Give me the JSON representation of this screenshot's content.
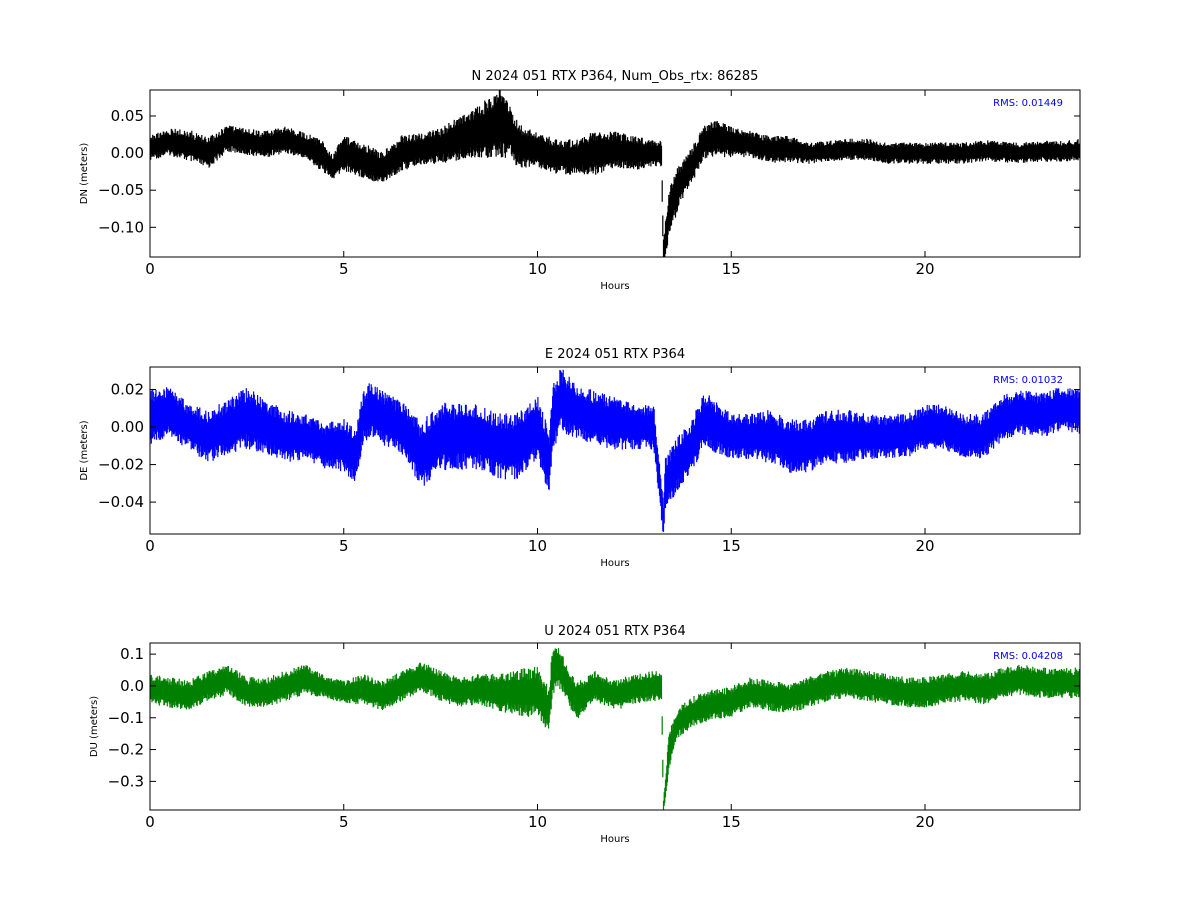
{
  "colors": {
    "background": "#ffffff",
    "axes": "#000000",
    "rms_text": "#0000ff"
  },
  "chart_data": [
    {
      "type": "scatter",
      "title": "N 2024 051 RTX  P364, Num_Obs_rtx: 86285",
      "xlabel": "Hours",
      "ylabel": "DN (meters)",
      "xlim": [
        0,
        24
      ],
      "ylim": [
        -0.14,
        0.085
      ],
      "xticks": [
        0,
        5,
        10,
        15,
        20
      ],
      "yticks": [
        0.05,
        0.0,
        -0.05,
        -0.1
      ],
      "ytick_labels": [
        "0.05",
        "0.00",
        "−0.05",
        "−0.10"
      ],
      "rms_label": "RMS:  0.01449",
      "color": "#000000",
      "grid": false,
      "series": [
        {
          "x": [
            0.0,
            0.5,
            1.0,
            1.5,
            2.0,
            2.5,
            3.0,
            3.5,
            4.0,
            4.5,
            4.7,
            5.0,
            5.5,
            6.0,
            6.5,
            7.0,
            7.5,
            8.0,
            8.5,
            9.0,
            9.3,
            9.5,
            10.0,
            10.5,
            11.0,
            11.5,
            12.0,
            12.5,
            13.0,
            13.2,
            13.25,
            13.4,
            13.6,
            13.8,
            14.0,
            14.3,
            14.6,
            15.0,
            15.5,
            16.0,
            16.5,
            17.0,
            17.5,
            18.0,
            18.5,
            19.0,
            19.5,
            20.0,
            20.5,
            21.0,
            21.5,
            22.0,
            22.5,
            23.0,
            23.5,
            24.0
          ],
          "y": [
            0.008,
            0.015,
            0.01,
            0.0,
            0.02,
            0.015,
            0.012,
            0.018,
            0.01,
            -0.005,
            -0.02,
            0.0,
            -0.01,
            -0.02,
            0.0,
            0.005,
            0.01,
            0.02,
            0.03,
            0.04,
            0.03,
            0.01,
            0.005,
            -0.005,
            -0.005,
            0.0,
            0.005,
            0.0,
            0.0,
            0.0,
            -0.14,
            -0.08,
            -0.05,
            -0.03,
            -0.015,
            0.015,
            0.02,
            0.015,
            0.012,
            0.005,
            0.005,
            0.0,
            0.002,
            0.005,
            0.005,
            0.0,
            0.0,
            0.0,
            0.0,
            0.0,
            0.003,
            0.002,
            0.0,
            0.003,
            0.002,
            0.005
          ],
          "spread": [
            0.015,
            0.015,
            0.018,
            0.018,
            0.015,
            0.015,
            0.015,
            0.015,
            0.015,
            0.018,
            0.015,
            0.02,
            0.02,
            0.018,
            0.02,
            0.018,
            0.02,
            0.025,
            0.03,
            0.04,
            0.03,
            0.025,
            0.02,
            0.02,
            0.02,
            0.025,
            0.02,
            0.02,
            0.015,
            0.015,
            0.02,
            0.03,
            0.025,
            0.02,
            0.02,
            0.02,
            0.02,
            0.018,
            0.015,
            0.015,
            0.015,
            0.012,
            0.012,
            0.012,
            0.012,
            0.012,
            0.012,
            0.012,
            0.012,
            0.012,
            0.012,
            0.012,
            0.012,
            0.012,
            0.012,
            0.012
          ]
        }
      ]
    },
    {
      "type": "scatter",
      "title": "E 2024 051 RTX  P364",
      "xlabel": "Hours",
      "ylabel": "DE (meters)",
      "xlim": [
        0,
        24
      ],
      "ylim": [
        -0.057,
        0.032
      ],
      "xticks": [
        0,
        5,
        10,
        15,
        20
      ],
      "yticks": [
        0.02,
        0.0,
        -0.02,
        -0.04
      ],
      "ytick_labels": [
        "0.02",
        "0.00",
        "−0.02",
        "−0.04"
      ],
      "rms_label": "RMS:  0.01032",
      "color": "#0000ff",
      "grid": false,
      "series": [
        {
          "x": [
            0.0,
            0.5,
            1.0,
            1.5,
            2.0,
            2.5,
            3.0,
            3.5,
            4.0,
            4.5,
            5.0,
            5.3,
            5.5,
            5.7,
            6.0,
            6.5,
            7.0,
            7.5,
            8.0,
            8.5,
            9.0,
            9.5,
            10.0,
            10.3,
            10.4,
            10.6,
            11.0,
            11.5,
            12.0,
            12.5,
            13.0,
            13.25,
            13.3,
            13.6,
            14.0,
            14.3,
            14.6,
            15.0,
            15.5,
            16.0,
            16.5,
            17.0,
            17.5,
            18.0,
            18.5,
            19.0,
            19.5,
            20.0,
            20.5,
            21.0,
            21.5,
            22.0,
            22.5,
            23.0,
            23.5,
            24.0
          ],
          "y": [
            0.005,
            0.008,
            0.0,
            -0.005,
            0.0,
            0.005,
            0.0,
            -0.005,
            -0.005,
            -0.01,
            -0.01,
            -0.015,
            0.005,
            0.01,
            0.005,
            0.0,
            -0.015,
            -0.005,
            -0.005,
            -0.005,
            -0.01,
            -0.01,
            0.0,
            -0.02,
            0.005,
            0.015,
            0.008,
            0.005,
            0.002,
            0.0,
            0.0,
            -0.05,
            -0.03,
            -0.02,
            -0.01,
            0.005,
            0.0,
            -0.005,
            -0.005,
            -0.005,
            -0.01,
            -0.01,
            -0.005,
            -0.005,
            -0.005,
            -0.005,
            -0.005,
            0.0,
            0.0,
            -0.005,
            -0.005,
            0.005,
            0.008,
            0.006,
            0.01,
            0.008
          ],
          "spread": [
            0.012,
            0.012,
            0.01,
            0.012,
            0.012,
            0.014,
            0.012,
            0.012,
            0.01,
            0.01,
            0.012,
            0.012,
            0.012,
            0.012,
            0.012,
            0.012,
            0.015,
            0.015,
            0.015,
            0.015,
            0.015,
            0.015,
            0.014,
            0.015,
            0.015,
            0.015,
            0.012,
            0.012,
            0.012,
            0.01,
            0.01,
            0.008,
            0.012,
            0.012,
            0.012,
            0.012,
            0.012,
            0.01,
            0.01,
            0.012,
            0.012,
            0.012,
            0.012,
            0.012,
            0.01,
            0.01,
            0.01,
            0.01,
            0.01,
            0.01,
            0.01,
            0.01,
            0.01,
            0.01,
            0.01,
            0.01
          ]
        }
      ]
    },
    {
      "type": "scatter",
      "title": "U 2024 051 RTX  P364",
      "xlabel": "Hours",
      "ylabel": "DU (meters)",
      "xlim": [
        0,
        24
      ],
      "ylim": [
        -0.39,
        0.135
      ],
      "xticks": [
        0,
        5,
        10,
        15,
        20
      ],
      "yticks": [
        0.1,
        0.0,
        -0.1,
        -0.2,
        -0.3
      ],
      "ytick_labels": [
        "0.1",
        "0.0",
        "−0.1",
        "−0.2",
        "−0.3"
      ],
      "rms_label": "RMS:  0.04208",
      "color": "#008000",
      "grid": false,
      "series": [
        {
          "x": [
            0.0,
            0.5,
            1.0,
            1.5,
            2.0,
            2.5,
            3.0,
            3.5,
            4.0,
            4.5,
            5.0,
            5.5,
            6.0,
            6.5,
            7.0,
            7.5,
            8.0,
            8.5,
            9.0,
            9.5,
            10.0,
            10.3,
            10.4,
            10.6,
            10.8,
            11.0,
            11.5,
            12.0,
            12.5,
            13.0,
            13.2,
            13.25,
            13.4,
            13.6,
            13.8,
            14.0,
            14.5,
            15.0,
            15.5,
            16.0,
            16.5,
            17.0,
            17.5,
            18.0,
            18.5,
            19.0,
            19.5,
            20.0,
            20.5,
            21.0,
            21.5,
            22.0,
            22.5,
            23.0,
            23.5,
            24.0
          ],
          "y": [
            -0.01,
            -0.02,
            -0.03,
            0.0,
            0.02,
            -0.02,
            -0.02,
            0.0,
            0.02,
            0.0,
            -0.02,
            -0.01,
            -0.03,
            0.0,
            0.03,
            0.0,
            -0.02,
            -0.01,
            -0.02,
            -0.02,
            -0.02,
            -0.08,
            0.06,
            0.05,
            0.0,
            -0.05,
            0.0,
            -0.03,
            -0.01,
            0.0,
            0.0,
            -0.38,
            -0.2,
            -0.12,
            -0.1,
            -0.08,
            -0.06,
            -0.05,
            -0.02,
            -0.03,
            -0.04,
            -0.02,
            0.0,
            0.01,
            0.0,
            -0.01,
            -0.02,
            -0.02,
            -0.01,
            0.0,
            -0.01,
            0.01,
            0.02,
            0.01,
            0.01,
            0.01
          ],
          "spread": [
            0.04,
            0.04,
            0.04,
            0.04,
            0.04,
            0.04,
            0.04,
            0.04,
            0.04,
            0.03,
            0.03,
            0.04,
            0.04,
            0.04,
            0.04,
            0.04,
            0.04,
            0.04,
            0.05,
            0.06,
            0.07,
            0.06,
            0.07,
            0.05,
            0.05,
            0.05,
            0.04,
            0.04,
            0.04,
            0.04,
            0.04,
            0.02,
            0.05,
            0.04,
            0.04,
            0.04,
            0.04,
            0.04,
            0.04,
            0.04,
            0.04,
            0.04,
            0.04,
            0.04,
            0.04,
            0.04,
            0.04,
            0.04,
            0.04,
            0.04,
            0.04,
            0.04,
            0.04,
            0.04,
            0.04,
            0.04
          ]
        }
      ]
    }
  ]
}
